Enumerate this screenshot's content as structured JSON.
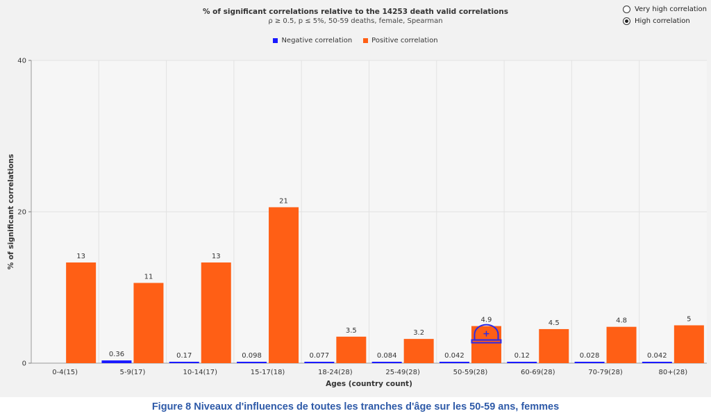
{
  "chart_data": {
    "type": "bar",
    "title": "% of significant correlations relative to the 14253 death valid correlations",
    "subtitle": "ρ ≥ 0.5, p ≤ 5%, 50-59 deaths, female, Spearman",
    "xlabel": "Ages (country count)",
    "ylabel": "% of significant correlations",
    "ylim": [
      0,
      40
    ],
    "yticks": [
      0,
      20,
      40
    ],
    "categories": [
      "0-4(15)",
      "5-9(17)",
      "10-14(17)",
      "15-17(18)",
      "18-24(28)",
      "25-49(28)",
      "50-59(28)",
      "60-69(28)",
      "70-79(28)",
      "80+(28)"
    ],
    "series": [
      {
        "name": "Negative correlation",
        "color": "#1a1aff",
        "values": [
          0,
          0.36,
          0.17,
          0.098,
          0.077,
          0.084,
          0.042,
          0.12,
          0.028,
          0.042
        ],
        "labels": [
          "",
          "0.36",
          "0.17",
          "0.098",
          "0.077",
          "0.084",
          "0.042",
          "0.12",
          "0.028",
          "0.042"
        ]
      },
      {
        "name": "Positive correlation",
        "color": "#ff5f15",
        "values": [
          13.3,
          10.6,
          13.3,
          20.6,
          3.5,
          3.2,
          4.9,
          4.5,
          4.8,
          5.0
        ],
        "labels": [
          "13",
          "11",
          "13",
          "21",
          "3.5",
          "3.2",
          "4.9",
          "4.5",
          "4.8",
          "5"
        ]
      }
    ]
  },
  "legend": {
    "negative_label": "Negative correlation",
    "positive_label": "Positive correlation",
    "negative_color": "#1a1aff",
    "positive_color": "#ff5f15"
  },
  "options": {
    "very_high": "Very high correlation",
    "high": "High correlation",
    "selected": "high"
  },
  "caption": "Figure 8 Niveaux d'influences de toutes les tranches d'âge sur les 50-59 ans, femmes"
}
